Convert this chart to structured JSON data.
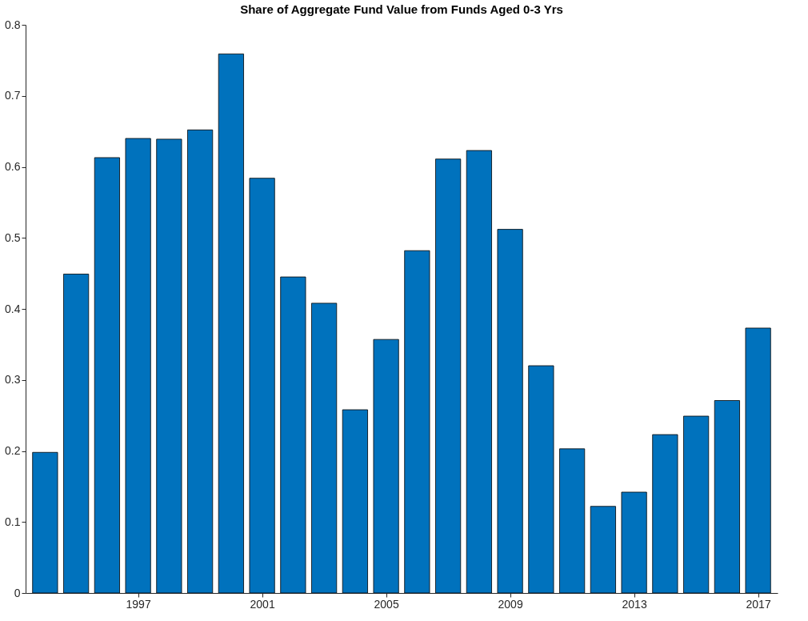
{
  "chart_data": {
    "type": "bar",
    "title": "Share of Aggregate Fund Value from Funds Aged 0-3 Yrs",
    "x": [
      1994,
      1995,
      1996,
      1997,
      1998,
      1999,
      2000,
      2001,
      2002,
      2003,
      2004,
      2005,
      2006,
      2007,
      2008,
      2009,
      2010,
      2011,
      2012,
      2013,
      2014,
      2015,
      2016,
      2017
    ],
    "values": [
      0.198,
      0.449,
      0.613,
      0.64,
      0.639,
      0.652,
      0.759,
      0.584,
      0.445,
      0.408,
      0.258,
      0.357,
      0.482,
      0.611,
      0.623,
      0.512,
      0.32,
      0.203,
      0.122,
      0.142,
      0.223,
      0.249,
      0.271,
      0.373
    ],
    "color": "#0072bd",
    "xlim": [
      1993.5,
      2017.5
    ],
    "xticks": [
      1997,
      2001,
      2005,
      2009,
      2013,
      2017
    ],
    "ylim": [
      0,
      0.8
    ],
    "yticks": [
      0,
      0.1,
      0.2,
      0.3,
      0.4,
      0.5,
      0.6,
      0.7,
      0.8
    ],
    "grid": false
  }
}
